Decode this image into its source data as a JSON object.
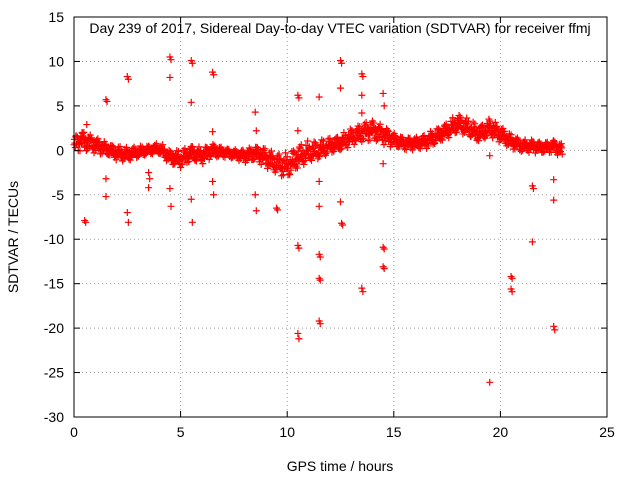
{
  "chart_data": {
    "type": "scatter",
    "title": "Day 239 of 2017, Sidereal Day-to-day VTEC variation (SDTVAR) for receiver ffmj",
    "xlabel": "GPS time / hours",
    "ylabel": "SDTVAR / TECUs",
    "xlim": [
      0,
      25
    ],
    "ylim": [
      -30,
      15
    ],
    "xticks": [
      0,
      5,
      10,
      15,
      20,
      25
    ],
    "yticks": [
      -30,
      -25,
      -20,
      -15,
      -10,
      -5,
      0,
      5,
      10,
      15
    ],
    "xtick_labels": [
      "0",
      "5",
      "10",
      "15",
      "20",
      "25"
    ],
    "ytick_labels": [
      "-30",
      "-25",
      "-20",
      "-15",
      "-10",
      "-5",
      "0",
      "5",
      "10",
      "15"
    ],
    "grid": true,
    "marker": "+",
    "color": "#ff0000",
    "series": [
      {
        "name": "SDTVAR",
        "band": {
          "x": [
            0,
            0.3,
            0.6,
            1.0,
            1.5,
            2.0,
            2.5,
            3.0,
            3.5,
            4.0,
            4.5,
            5.0,
            5.5,
            6.0,
            6.5,
            7.0,
            7.5,
            8.0,
            8.5,
            9.0,
            9.5,
            10.0,
            10.5,
            11.0,
            11.5,
            12.0,
            12.5,
            13.0,
            13.5,
            14.0,
            14.5,
            15.0,
            15.5,
            16.0,
            16.5,
            17.0,
            17.5,
            18.0,
            18.5,
            19.0,
            19.5,
            20.0,
            20.5,
            21.0,
            21.5,
            22.0,
            22.5,
            22.9
          ],
          "y": [
            0.5,
            1.2,
            1.0,
            0.6,
            0.2,
            -0.3,
            -0.5,
            -0.2,
            0.0,
            0.2,
            -0.8,
            -1.0,
            -0.3,
            -0.6,
            0.0,
            -0.2,
            -0.4,
            -0.6,
            -0.3,
            -0.8,
            -1.5,
            -1.8,
            -0.8,
            -0.2,
            0.0,
            0.5,
            0.8,
            1.5,
            2.0,
            2.3,
            1.8,
            1.2,
            0.8,
            0.8,
            1.0,
            1.6,
            2.2,
            3.0,
            2.5,
            1.8,
            2.5,
            1.8,
            1.0,
            0.5,
            0.5,
            0.3,
            0.5,
            0.0
          ],
          "spread": [
            1.2,
            1.3,
            1.2,
            1.0,
            0.8,
            0.9,
            0.9,
            0.7,
            0.6,
            0.7,
            0.9,
            1.1,
            1.0,
            1.0,
            0.9,
            0.6,
            0.6,
            0.8,
            1.0,
            1.2,
            1.3,
            1.6,
            1.5,
            1.3,
            1.2,
            1.0,
            1.0,
            1.1,
            1.2,
            1.3,
            1.2,
            0.9,
            0.8,
            0.8,
            0.9,
            1.0,
            1.0,
            1.2,
            1.1,
            1.1,
            1.1,
            1.1,
            0.9,
            0.8,
            0.8,
            0.7,
            0.8,
            0.9
          ],
          "step": 0.02
        },
        "outliers": [
          [
            0.5,
            -7.9
          ],
          [
            0.55,
            -8.1
          ],
          [
            0.6,
            2.9
          ],
          [
            1.5,
            5.7
          ],
          [
            1.55,
            5.5
          ],
          [
            1.5,
            -3.2
          ],
          [
            1.5,
            -5.2
          ],
          [
            2.5,
            8.3
          ],
          [
            2.55,
            8.0
          ],
          [
            2.5,
            -7.0
          ],
          [
            2.55,
            -8.1
          ],
          [
            3.5,
            -2.5
          ],
          [
            3.55,
            -3.2
          ],
          [
            3.5,
            -4.2
          ],
          [
            4.5,
            10.5
          ],
          [
            4.55,
            10.2
          ],
          [
            4.5,
            8.2
          ],
          [
            4.5,
            -4.3
          ],
          [
            4.55,
            -6.3
          ],
          [
            5.5,
            10.1
          ],
          [
            5.55,
            9.8
          ],
          [
            5.5,
            5.4
          ],
          [
            5.5,
            -5.5
          ],
          [
            5.55,
            -8.1
          ],
          [
            6.5,
            8.8
          ],
          [
            6.55,
            8.5
          ],
          [
            6.5,
            2.1
          ],
          [
            6.5,
            -3.5
          ],
          [
            6.55,
            -5.0
          ],
          [
            8.5,
            4.3
          ],
          [
            8.55,
            2.2
          ],
          [
            8.5,
            -5.0
          ],
          [
            8.55,
            -6.8
          ],
          [
            9.5,
            -6.5
          ],
          [
            9.55,
            -6.7
          ],
          [
            10.5,
            6.2
          ],
          [
            10.55,
            5.9
          ],
          [
            10.5,
            2.2
          ],
          [
            10.5,
            -10.7
          ],
          [
            10.55,
            -11.0
          ],
          [
            10.5,
            -20.6
          ],
          [
            10.55,
            -21.2
          ],
          [
            11.5,
            6.0
          ],
          [
            11.5,
            -3.5
          ],
          [
            11.5,
            -6.3
          ],
          [
            11.5,
            -11.7
          ],
          [
            11.55,
            -12.0
          ],
          [
            11.5,
            -14.4
          ],
          [
            11.55,
            -14.6
          ],
          [
            11.5,
            -19.2
          ],
          [
            11.55,
            -19.5
          ],
          [
            12.5,
            10.1
          ],
          [
            12.55,
            9.8
          ],
          [
            12.5,
            7.0
          ],
          [
            12.5,
            -5.8
          ],
          [
            12.55,
            -8.2
          ],
          [
            12.6,
            -8.4
          ],
          [
            13.5,
            8.6
          ],
          [
            13.55,
            8.3
          ],
          [
            13.5,
            6.2
          ],
          [
            13.5,
            4.2
          ],
          [
            13.5,
            -15.5
          ],
          [
            13.55,
            -15.9
          ],
          [
            14.5,
            6.4
          ],
          [
            14.55,
            5.0
          ],
          [
            14.5,
            -1.5
          ],
          [
            14.5,
            -10.9
          ],
          [
            14.55,
            -11.1
          ],
          [
            14.5,
            -13.1
          ],
          [
            14.55,
            -13.3
          ],
          [
            19.5,
            3.3
          ],
          [
            19.5,
            -0.6
          ],
          [
            19.5,
            -26.1
          ],
          [
            20.5,
            -14.2
          ],
          [
            20.55,
            -14.4
          ],
          [
            20.5,
            -15.6
          ],
          [
            20.55,
            -15.9
          ],
          [
            21.5,
            -4.0
          ],
          [
            21.55,
            -4.3
          ],
          [
            21.5,
            -10.3
          ],
          [
            22.5,
            -3.3
          ],
          [
            22.5,
            -5.6
          ],
          [
            22.5,
            -19.8
          ],
          [
            22.55,
            -20.2
          ]
        ]
      }
    ]
  }
}
